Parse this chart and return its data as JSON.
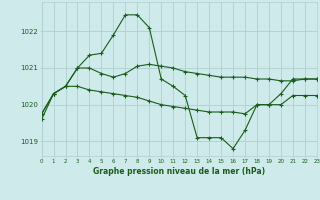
{
  "title": "Graphe pression niveau de la mer (hPa)",
  "background_color": "#ceeaea",
  "grid_color": "#b0d0d0",
  "line_color": "#1a5c1a",
  "x_min": 0,
  "x_max": 23,
  "y_min": 1018.6,
  "y_max": 1022.8,
  "yticks": [
    1019,
    1020,
    1021,
    1022
  ],
  "xticks": [
    0,
    1,
    2,
    3,
    4,
    5,
    6,
    7,
    8,
    9,
    10,
    11,
    12,
    13,
    14,
    15,
    16,
    17,
    18,
    19,
    20,
    21,
    22,
    23
  ],
  "series1_x": [
    0,
    1,
    2,
    3,
    4,
    5,
    6,
    7,
    8,
    9,
    10,
    11,
    12,
    13,
    14,
    15,
    16,
    17,
    18,
    19,
    20,
    21,
    22,
    23
  ],
  "series1_y": [
    1019.6,
    1020.3,
    1020.5,
    1021.0,
    1021.35,
    1021.4,
    1021.9,
    1022.45,
    1022.45,
    1022.1,
    1020.7,
    1020.5,
    1020.25,
    1019.1,
    1019.1,
    1019.1,
    1018.8,
    1019.3,
    1020.0,
    1020.0,
    1020.3,
    1020.7,
    1020.7,
    1020.7
  ],
  "series2_x": [
    0,
    1,
    2,
    3,
    4,
    5,
    6,
    7,
    8,
    9,
    10,
    11,
    12,
    13,
    14,
    15,
    16,
    17,
    18,
    19,
    20,
    21,
    22,
    23
  ],
  "series2_y": [
    1019.75,
    1020.3,
    1020.5,
    1021.0,
    1021.0,
    1020.85,
    1020.75,
    1020.85,
    1021.05,
    1021.1,
    1021.05,
    1021.0,
    1020.9,
    1020.85,
    1020.8,
    1020.75,
    1020.75,
    1020.75,
    1020.7,
    1020.7,
    1020.65,
    1020.65,
    1020.7,
    1020.7
  ],
  "series3_x": [
    0,
    1,
    2,
    3,
    4,
    5,
    6,
    7,
    8,
    9,
    10,
    11,
    12,
    13,
    14,
    15,
    16,
    17,
    18,
    19,
    20,
    21,
    22,
    23
  ],
  "series3_y": [
    1019.75,
    1020.3,
    1020.5,
    1020.5,
    1020.4,
    1020.35,
    1020.3,
    1020.25,
    1020.2,
    1020.1,
    1020.0,
    1019.95,
    1019.9,
    1019.85,
    1019.8,
    1019.8,
    1019.8,
    1019.75,
    1020.0,
    1020.0,
    1020.0,
    1020.25,
    1020.25,
    1020.25
  ]
}
